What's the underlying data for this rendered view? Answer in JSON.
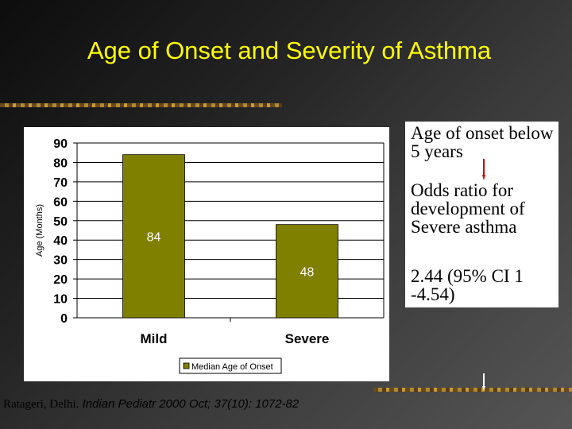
{
  "slide": {
    "title": "Age of Onset and Severity of Asthma"
  },
  "chart_data": {
    "type": "bar",
    "categories": [
      "Mild",
      "Severe"
    ],
    "values": [
      84,
      48
    ],
    "data_labels": [
      "84",
      "48"
    ],
    "series": [
      {
        "name": "Median Age of Onset",
        "values": [
          84,
          48
        ]
      }
    ],
    "ylabel": "Age (Months)",
    "ylim": [
      0,
      90
    ],
    "yticks": [
      "0",
      "10",
      "20",
      "30",
      "40",
      "50",
      "60",
      "70",
      "80",
      "90"
    ],
    "grid": true,
    "legend_placement": "bottom",
    "bar_color": "#808000"
  },
  "info_box": {
    "line1": "Age of onset below 5 years",
    "line2": "Odds ratio for development of Severe asthma",
    "line3": "2.44 (95% CI 1 -4.54)"
  },
  "citation": {
    "author": "Ratageri, Delhi.",
    "source": "Indian Pediatr 2000 Oct; 37(10): 1072-82"
  },
  "colors": {
    "title": "#ffff00",
    "arrow": "#cc0000"
  }
}
